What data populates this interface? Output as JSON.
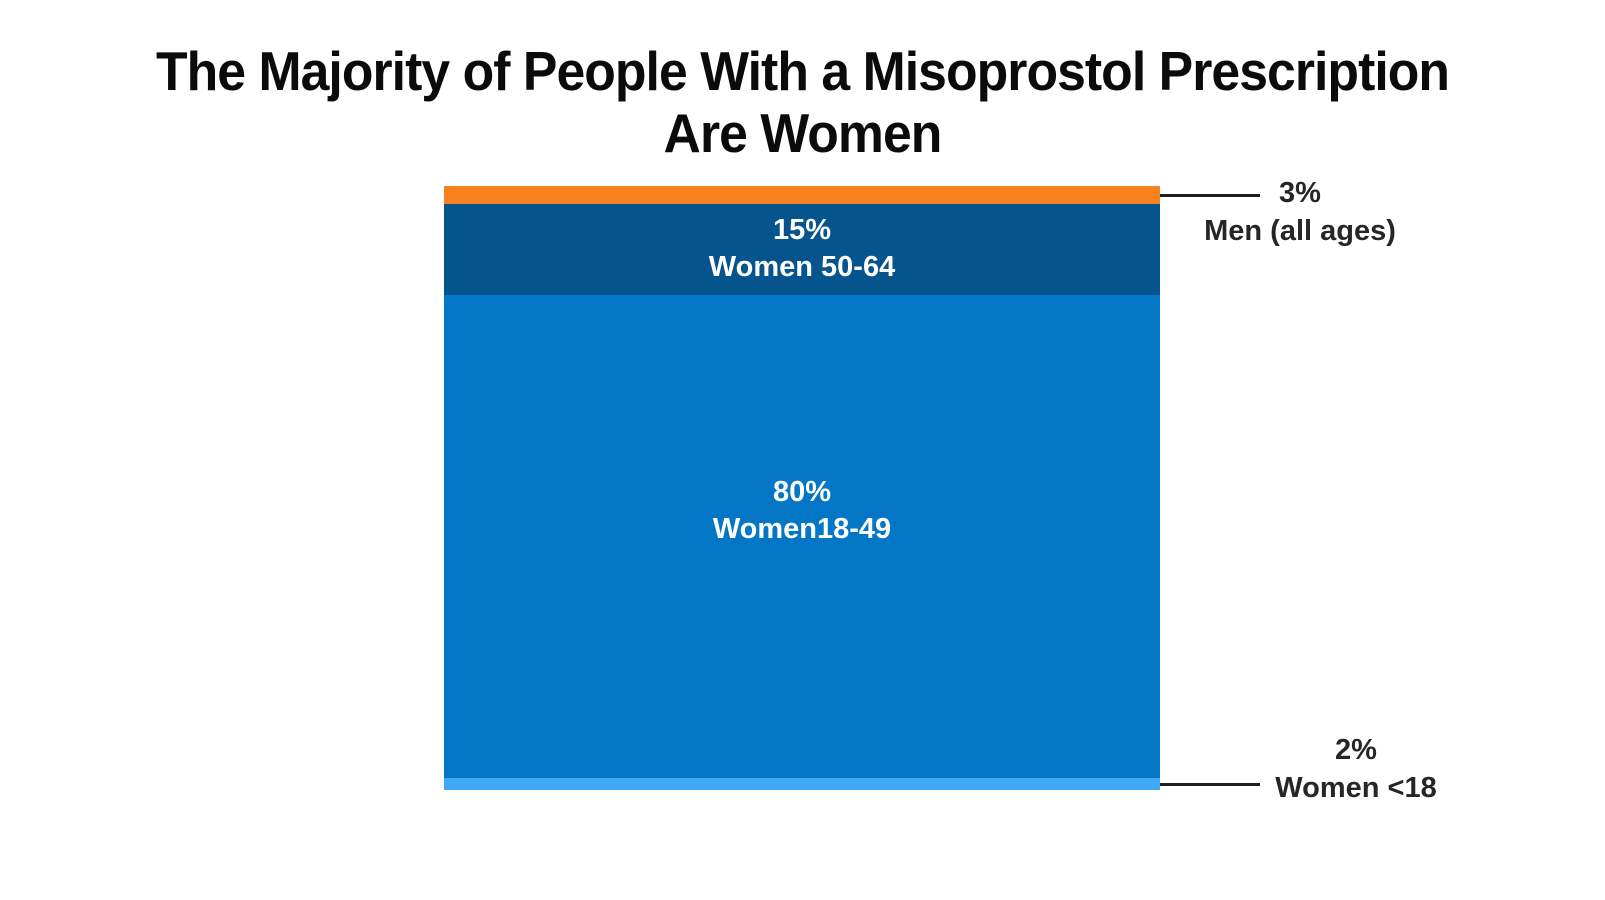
{
  "title": {
    "line1": "The Majority of People With a Misoprostol Prescription",
    "line2": "Are Women"
  },
  "colors": {
    "background": "#ffffff",
    "title_text": "#0b0b0b",
    "inside_label_text": "#ffffff",
    "outside_label_text": "#262626",
    "connector_line": "#1e1e1e"
  },
  "chart_data": {
    "type": "bar",
    "subtype": "single-column-100pct-stacked",
    "title": "The Majority of People With a Misoprostol Prescription Are Women",
    "total_pct": 100,
    "grid": false,
    "axes_shown": false,
    "segments": [
      {
        "id": "men-all-ages",
        "pct_label": "3%",
        "name_label": "Men (all ages)",
        "value": 3,
        "color": "#F5821F",
        "label_placement": "outside-right-top"
      },
      {
        "id": "women-50-64",
        "pct_label": "15%",
        "name_label": "Women 50-64",
        "value": 15,
        "color": "#05548E",
        "label_placement": "inside"
      },
      {
        "id": "women-18-49",
        "pct_label": "80%",
        "name_label": "Women18-49",
        "value": 80,
        "color": "#0377C6",
        "label_placement": "inside"
      },
      {
        "id": "women-under-18",
        "pct_label": "2%",
        "name_label": "Women <18",
        "value": 2,
        "color": "#3FA9F8",
        "label_placement": "outside-right-bottom"
      }
    ]
  }
}
